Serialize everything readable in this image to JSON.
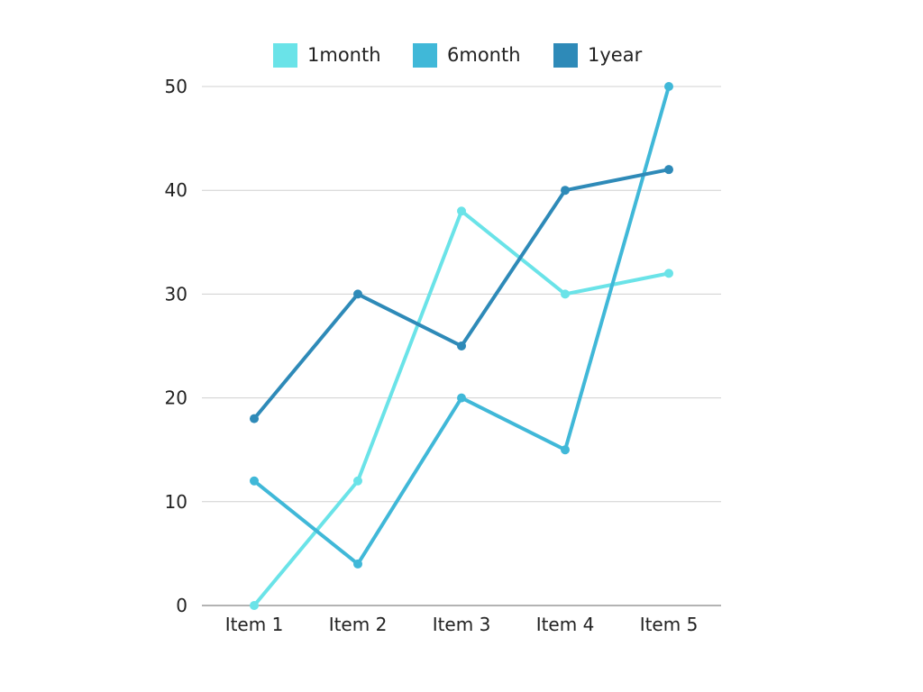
{
  "chart_data": {
    "type": "line",
    "categories": [
      "Item 1",
      "Item 2",
      "Item 3",
      "Item 4",
      "Item 5"
    ],
    "series": [
      {
        "name": "1month",
        "color": "#6ae3e8",
        "values": [
          0,
          12,
          38,
          30,
          32
        ]
      },
      {
        "name": "6month",
        "color": "#40b8d8",
        "values": [
          12,
          4,
          20,
          15,
          50
        ]
      },
      {
        "name": "1year",
        "color": "#2e8ab8",
        "values": [
          18,
          30,
          25,
          40,
          42
        ]
      }
    ],
    "yticks": [
      0,
      10,
      20,
      30,
      40,
      50
    ],
    "ylim": [
      0,
      50
    ],
    "grid": true,
    "legend_position": "top"
  }
}
